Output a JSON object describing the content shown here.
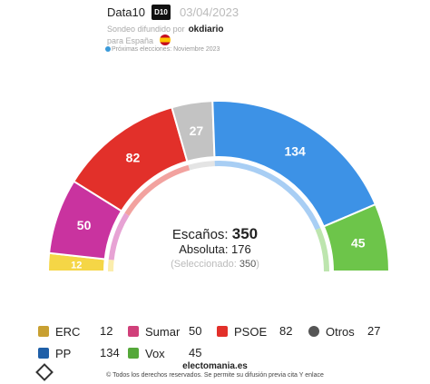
{
  "header": {
    "pollster": "Data10",
    "pollster_badge": "D10",
    "date": "03/04/2023",
    "line2_prefix": "Sondeo difundido por",
    "client": "okdiario",
    "line3": "para España",
    "line4": "Próximas elecciones: Noviembre 2023"
  },
  "chart_data": {
    "type": "pie",
    "subtype": "hemicycle",
    "total_seats": 350,
    "categories": [
      "ERC",
      "Sumar",
      "PSOE",
      "Otros",
      "PP",
      "Vox"
    ],
    "values": [
      12,
      50,
      82,
      27,
      134,
      45
    ],
    "colors": [
      "#f5d646",
      "#c9339f",
      "#e2302a",
      "#c3c3c3",
      "#3d92e6",
      "#6dc54a"
    ],
    "seats_label": "Escaños:",
    "seats_value": "350",
    "majority_label": "Absoluta: 176",
    "selected_label": "(Seleccionado:",
    "selected_value": "350",
    "selected_close": ")"
  },
  "legend": [
    {
      "name": "ERC",
      "seats": "12",
      "color": "#c8a032",
      "icon": "erc-icon"
    },
    {
      "name": "Sumar",
      "seats": "50",
      "color": "#d0407a",
      "icon": "sumar-icon"
    },
    {
      "name": "PSOE",
      "seats": "82",
      "color": "#e2302a",
      "icon": "psoe-icon"
    },
    {
      "name": "Otros",
      "seats": "27",
      "color": "#555555",
      "icon": "otros-icon"
    },
    {
      "name": "PP",
      "seats": "134",
      "color": "#1f5fa8",
      "icon": "pp-icon"
    },
    {
      "name": "Vox",
      "seats": "45",
      "color": "#55a83a",
      "icon": "vox-icon"
    }
  ],
  "footer": {
    "site": "electomania.es",
    "copyright": "© Todos los derechos reservados. Se permite su difusión previa cita Y enlace"
  }
}
